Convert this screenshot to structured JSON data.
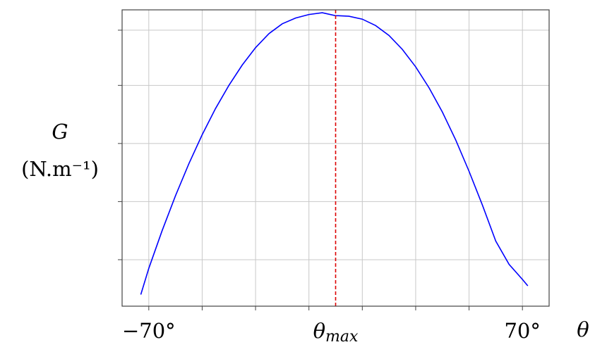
{
  "chart_data": {
    "type": "line",
    "title": "",
    "ylabel": "G",
    "ylabel_unit": "(N.m⁻¹)",
    "xlabel": "θ",
    "xlim": [
      -80,
      80
    ],
    "ylim": [
      0,
      1.02
    ],
    "grid": true,
    "x_tick_values": [
      -70,
      -50,
      -30,
      -10,
      10,
      30,
      50,
      70
    ],
    "x_tick_labels": [
      {
        "value": -70,
        "text": "−70°"
      },
      {
        "value": 0,
        "text": "θmax"
      },
      {
        "value": 70,
        "text": "70°"
      }
    ],
    "y_tick_values": [
      0.16,
      0.36,
      0.56,
      0.76,
      0.95
    ],
    "y_tick_labels_shown": false,
    "vertical_marker": {
      "x": 0,
      "style": "dashed",
      "color": "#dd0000"
    },
    "series": [
      {
        "color": "#0000ff",
        "x": [
          -73,
          -70,
          -65,
          -60,
          -55,
          -50,
          -45,
          -40,
          -35,
          -30,
          -25,
          -20,
          -15,
          -10,
          -5,
          0,
          1,
          5,
          10,
          15,
          20,
          25,
          30,
          35,
          40,
          45,
          50,
          55,
          60,
          65,
          70,
          72
        ],
        "y": [
          0.04,
          0.13,
          0.26,
          0.38,
          0.49,
          0.59,
          0.68,
          0.76,
          0.83,
          0.89,
          0.938,
          0.972,
          0.992,
          1.004,
          1.01,
          1.0,
          1.0,
          0.998,
          0.988,
          0.966,
          0.932,
          0.884,
          0.824,
          0.752,
          0.668,
          0.572,
          0.464,
          0.348,
          0.224,
          0.144,
          0.092,
          0.07
        ]
      }
    ]
  }
}
